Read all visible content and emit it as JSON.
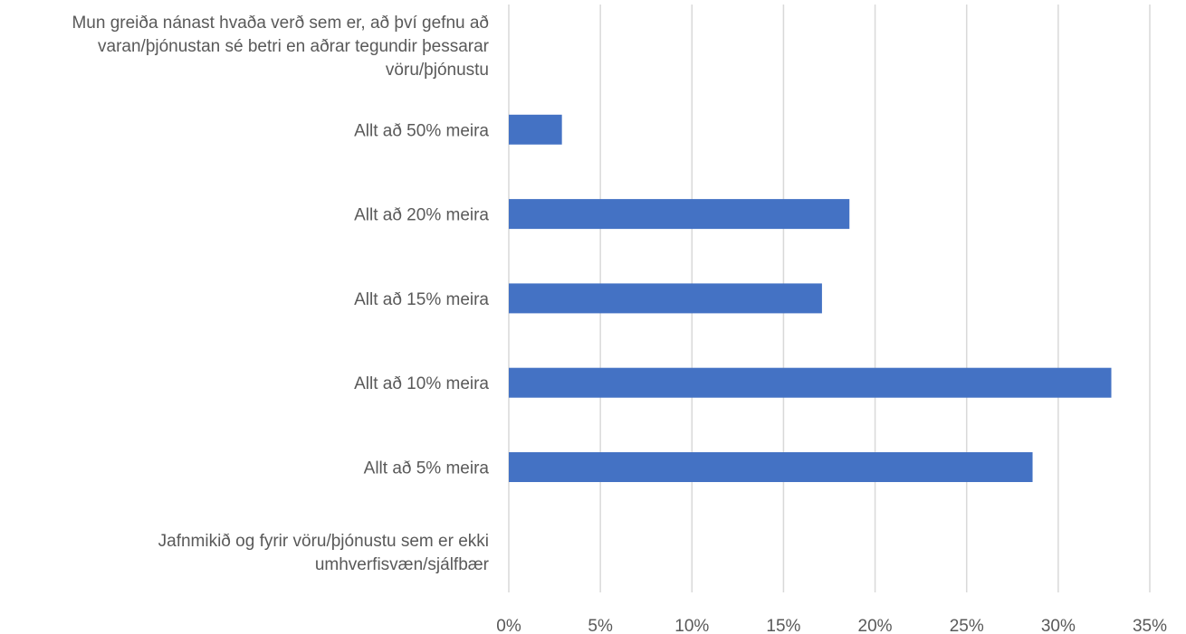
{
  "chart_data": {
    "type": "bar",
    "orientation": "horizontal",
    "categories": [
      "Mun greiða nánast hvaða verð sem er, að því gefnu að varan/þjónustan sé betri en aðrar tegundir þessarar vöru/þjónustu",
      "Allt að 50% meira",
      "Allt að 20% meira",
      "Allt að 15% meira",
      "Allt að 10% meira",
      "Allt að 5% meira",
      "Jafnmikið og fyrir vöru/þjónustu sem er ekki umhverfisvæn/sjálfbær"
    ],
    "category_lines": [
      [
        "Mun greiða nánast hvaða verð sem er, að því gefnu að",
        "varan/þjónustan sé betri en aðrar tegundir þessarar",
        "vöru/þjónustu"
      ],
      [
        "Allt að 50% meira"
      ],
      [
        "Allt að 20% meira"
      ],
      [
        "Allt að 15% meira"
      ],
      [
        "Allt að 10% meira"
      ],
      [
        "Allt að 5% meira"
      ],
      [
        "Jafnmikið og fyrir vöru/þjónustu sem er ekki",
        "umhverfisvæn/sjálfbær"
      ]
    ],
    "values": [
      0,
      2.9,
      18.6,
      17.1,
      32.9,
      28.6,
      0
    ],
    "xlim": [
      0,
      35
    ],
    "ticks": [
      0,
      5,
      10,
      15,
      20,
      25,
      30,
      35
    ],
    "tick_labels": [
      "0%",
      "5%",
      "10%",
      "15%",
      "20%",
      "25%",
      "30%",
      "35%"
    ],
    "grid": true,
    "legend": "none",
    "bar_color": "#4472C4",
    "title": "",
    "xlabel": "",
    "ylabel": ""
  }
}
